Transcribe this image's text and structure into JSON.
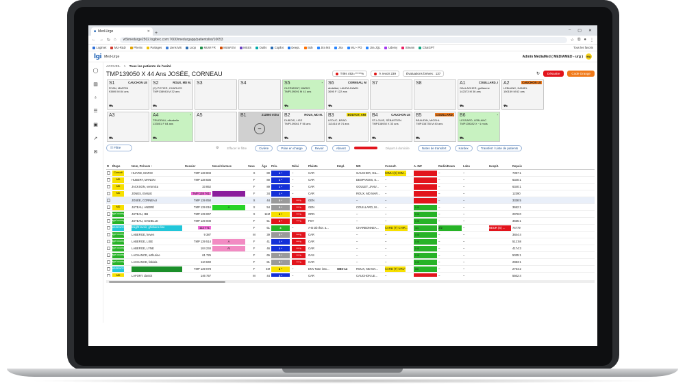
{
  "browser": {
    "tab_title": "Med-Urge",
    "url": "w5imedurge2502.logibec.com:7600/medurgapp/patientslist/10053",
    "bookmarks": [
      "Logimet",
      "MU-R&D",
      "Phenix",
      "Partages",
      "Liens MS",
      "Loop",
      "MUW FR",
      "MUW EN",
      "MSSS",
      "Outils",
      "Copilot",
      "DeepL",
      "Bob",
      "Jira MS",
      "Jira",
      "MU - PO",
      "Jira JQL",
      "Udemy",
      "Stream",
      "ChatGPT"
    ],
    "bookmarks_right": "Tous les favoris"
  },
  "app": {
    "logo": "lgi",
    "name": "Med-Urge",
    "admin": "Admin MédiaMed ( MEDIAMED - urg )",
    "avatar": "MA"
  },
  "breadcrumb": {
    "home": "ACCUEIL",
    "sep": ">",
    "current": "Tous les patients de l'unité"
  },
  "patient_title": "TMP139050 X 44 Ans JOSÉE, CORNEAU",
  "summary": {
    "tries": "Triés 492=*****%",
    "revoir": "À revoir 239",
    "evaluations": "Évaluations brèves : 137"
  },
  "buttons": {
    "desastre": "Désastre",
    "code_orange": "Code Orange",
    "refresh": "↻"
  },
  "beds": [
    {
      "id": "S1",
      "head": "CAUCHON LE",
      "l1": "RYAN, MARTIN",
      "l2": "93890    M  84 ans",
      "bg": "#f4f4f4"
    },
    {
      "id": "S2",
      "head": "ROUX, MD M.",
      "l1": "(C) POTIER, CHARLES",
      "l2": "TMP138943   M  32 ans",
      "bg": "#f4f4f4"
    },
    {
      "id": "S3",
      "head": "",
      "l1": "",
      "l2": "",
      "bg": "#f4f4f4"
    },
    {
      "id": "S4",
      "head": "",
      "l1": "",
      "l2": "",
      "bg": "#f4f4f4"
    },
    {
      "id": "S5",
      "head": "-",
      "l1": "CLERMONT, MARIO",
      "l2": "TMP139091   M  41 ans",
      "bg": "#c8f2c1"
    },
    {
      "id": "S6",
      "head": "CORNEAU, M",
      "l1": "abdallad, LAURA-DAWN",
      "l2": "3695    F  122 ans",
      "bg": "#f4f4f4"
    },
    {
      "id": "S7",
      "head": "",
      "l1": "",
      "l2": "",
      "bg": "#f4f4f4"
    },
    {
      "id": "S8",
      "head": "",
      "l1": "",
      "l2": "",
      "bg": "#f4f4f4"
    },
    {
      "id": "A1",
      "head": "COUILLARD, I",
      "l1": "GALLAGHER, guillaume",
      "l2": "142373   M  36 ans",
      "bg": "#f4f4f4"
    },
    {
      "id": "A2",
      "head": "CAUCHON LE",
      "l1": "LEBLANC, DANIEL",
      "l2": "150159   M  62 ans",
      "bg": "#f4f4f4"
    },
    {
      "id": "A3",
      "head": "",
      "l1": "",
      "l2": "",
      "bg": "#f4f4f4"
    },
    {
      "id": "A4",
      "head": "-",
      "l1": "TRUDEAU, elisabelle",
      "l2": "133051   F  64 ans",
      "bg": "#c8f2c1"
    },
    {
      "id": "A5",
      "head": "",
      "l1": "",
      "l2": "",
      "bg": "#f4f4f4"
    },
    {
      "id": "B1",
      "head": "212060 minu",
      "l1": "",
      "l2": "",
      "bg": "#d0d0d0"
    },
    {
      "id": "B2",
      "head": "ROUX, MD M.",
      "l1": "DUBOIS, LISE",
      "l2": "TMP139061   F  56 ans",
      "bg": "#f4f4f4"
    },
    {
      "id": "B3",
      "head": "BOUTOT, ANI",
      "l1": "LEDUC, BRAD",
      "l2": "113416   M  74 ans",
      "bg": "#f4f4f4"
    },
    {
      "id": "B4",
      "head": "CAUCHON LE",
      "l1": "ST-LOUIS, SÉBASTIEN",
      "l2": "TMP138930   X  33 ans",
      "bg": "#f4f4f4"
    },
    {
      "id": "B5",
      "head": "COUILLARD,",
      "l1": "BEAUDIN, MICEHL",
      "l2": "TMP138735   M  40 ans",
      "bg": "#f4f4f4"
    },
    {
      "id": "B6",
      "head": "-",
      "l1": "LESSARD, LEBLANC",
      "l2": "TMP139282   X  ~1 mois",
      "bg": "#c8f2c1"
    }
  ],
  "filters": {
    "filtre": "Filtre",
    "effacer": "Effacer le filtre",
    "civiere": "Civière",
    "prise": "Prise en charge",
    "revoir": "Revoir",
    "absent": "Absent",
    "red": "",
    "depart": "Départ à domicile",
    "notes": "Notes de transfert",
    "kardex": "Kardex",
    "transfert": "Transfert / Liste de patients"
  },
  "columns": [
    "R",
    "Étape",
    "Nom, Prénom ↑",
    "Dossier",
    "Nsso/Alarmes",
    "Sexe",
    "Âge",
    "Prio.",
    "Délai",
    "Plainte",
    "Empl.",
    "MD",
    "Consult.",
    "A. INF",
    "Radio/Exam",
    "Labo",
    "Hospit.",
    "Depuis"
  ],
  "rows": [
    {
      "stage": "Consult",
      "sc": "#f7e000",
      "name": "HUARD, MARIO",
      "dossier": "TMP 138 803",
      "alarm": "",
      "ac": "",
      "sex": "X",
      "age": "80",
      "prio": "1 *",
      "pc": "#1430d8",
      "delay": "–",
      "dc": "",
      "plainte": "CAR",
      "empl": "",
      "md": "GAUCHER, GIL...",
      "consult": "IMMU (S) IMM...",
      "cc": "#f7e000",
      "ainf": "",
      "ic": "#e2141c",
      "radio": "–",
      "labo": "–",
      "hosp": "",
      "hc": "",
      "since": "7397:1"
    },
    {
      "stage": "MD",
      "sc": "#f7e000",
      "name": "HUBERT, MANON",
      "dossier": "TMP 138 836",
      "alarm": "",
      "ac": "",
      "sex": "F",
      "age": "80",
      "prio": "1 *",
      "pc": "#1430d8",
      "delay": "–",
      "dc": "",
      "plainte": "CAR",
      "empl": "",
      "md": "DESPAROIS, E...",
      "consult": "–",
      "cc": "",
      "ainf": "",
      "ic": "#e2141c",
      "radio": "–",
      "labo": "–",
      "hosp": "",
      "hc": "",
      "since": "6340:1"
    },
    {
      "stage": "MD",
      "sc": "#f7e000",
      "name": "JACKSON, veromica",
      "dossier": "33 852",
      "alarm": "",
      "ac": "",
      "sex": "F",
      "age": "89",
      "prio": "1 *",
      "pc": "#1430d8",
      "delay": "–",
      "dc": "",
      "plainte": "CAR",
      "empl": "",
      "md": "GOULET, JANV...",
      "consult": "–",
      "cc": "",
      "ainf": "",
      "ic": "#e2141c",
      "radio": "–",
      "labo": "–",
      "hosp": "",
      "hc": "",
      "since": "6340:1"
    },
    {
      "stage": "MD",
      "sc": "#f7e000",
      "name": "JONES, EMILIE",
      "dossier": "TMP 138 761",
      "alarm": "",
      "ac": "#8a1d9c",
      "sex": "F",
      "age": "34",
      "prio": "1 *",
      "pc": "#1430d8",
      "delay": "–",
      "dc": "",
      "plainte": "CAR",
      "empl": "",
      "md": "ROUX, MD MAR...",
      "consult": "–",
      "cc": "",
      "ainf": "",
      "ic": "#e2141c",
      "radio": "–",
      "labo": "–",
      "hosp": "",
      "hc": "",
      "since": "12390"
    },
    {
      "stage": "",
      "sc": "",
      "name": "JOSÉE, CORNEAU",
      "dossier": "TMP 139 050",
      "alarm": "",
      "ac": "",
      "sex": "X",
      "age": "44",
      "prio": "5 *",
      "pc": "#9a9a9a",
      "delay": "****h",
      "dc": "#e2141c",
      "plainte": "GEN",
      "empl": "",
      "md": "–",
      "consult": "–",
      "cc": "",
      "ainf": "",
      "ic": "#e2141c",
      "radio": "–",
      "labo": "–",
      "hosp": "",
      "hc": "",
      "since": "3338:5"
    },
    {
      "stage": "MD",
      "sc": "#f7e000",
      "name": "JUTEAU, ANDRÉ",
      "dossier": "TMP 139 016",
      "alarm": "A",
      "ac": "#27d327",
      "sex": "X",
      "age": "54",
      "prio": "5 *",
      "pc": "#9a9a9a",
      "delay": "****h",
      "dc": "#e2141c",
      "plainte": "GEN",
      "empl": "",
      "md": "COUILLARD, M...",
      "consult": "–",
      "cc": "",
      "ainf": "0 /0",
      "ic": "#27b327",
      "radio": "–",
      "labo": "–",
      "hosp": "",
      "hc": "",
      "since": "3652:1"
    },
    {
      "stage": "Triage Incomplet",
      "sc": "#27b327",
      "name": "JUTEAU, BB",
      "dossier": "TMP 139 067",
      "alarm": "",
      "ac": "",
      "sex": "X",
      "age": "11M",
      "prio": "3 *",
      "pc": "#f7e000",
      "delay": "****h",
      "dc": "#e2141c",
      "plainte": "ORN",
      "empl": "",
      "md": "–",
      "consult": "–",
      "cc": "",
      "ainf": "0 /0",
      "ic": "#27b327",
      "radio": "–",
      "labo": "–",
      "hosp": "",
      "hc": "",
      "since": "2976:0"
    },
    {
      "stage": "Triage Incomplet",
      "sc": "#27b327",
      "name": "JUTEAU, DANIELLE",
      "dossier": "TMP 139 008",
      "alarm": "",
      "ac": "",
      "sex": "F",
      "age": "51",
      "prio": "2 *",
      "pc": "#e2141c",
      "delay": "****h",
      "dc": "#e2141c",
      "plainte": "PSY",
      "empl": "",
      "md": "–",
      "consult": "–",
      "cc": "",
      "ainf": "0 /0",
      "ic": "#27b327",
      "radio": "–",
      "labo": "–",
      "hosp": "",
      "hc": "",
      "since": "3655:1"
    },
    {
      "stage": "ABSENCE",
      "sc": "#22c6d9",
      "name": "knight lavoir, ghislaine lise",
      "dossier": "112 771",
      "alarm": "",
      "ac": "",
      "sex": "F",
      "age": "61",
      "prio": "4",
      "pc": "#27b327",
      "delay": "–",
      "dc": "",
      "plainte": "A-B Db thor. a...",
      "empl": "",
      "md": "CHARBONNEA...",
      "consult": "CARD (T) CHIR...",
      "cc": "#f7e000",
      "ainf": "1/1",
      "ic": "#27b327",
      "radio": "2/2",
      "labo": "–",
      "hosp": "NEUR (S) ...",
      "hc": "#e2141c",
      "since": "74779"
    },
    {
      "stage": "Triage Incomplet",
      "sc": "#27b327",
      "name": "LABERGE, keven",
      "dossier": "9 387",
      "alarm": "",
      "ac": "",
      "sex": "M",
      "age": "39",
      "prio": "5 *",
      "pc": "#9a9a9a",
      "delay": "****h",
      "dc": "#e2141c",
      "plainte": "CAR",
      "empl": "",
      "md": "–",
      "consult": "–",
      "cc": "",
      "ainf": "0 /0",
      "ic": "#27b327",
      "radio": "–",
      "labo": "–",
      "hosp": "",
      "hc": "",
      "since": "3844:4"
    },
    {
      "stage": "Triage Incomplet",
      "sc": "#27b327",
      "name": "LABERGE, LISE",
      "dossier": "TMP 139 514",
      "alarm": "A",
      "ac": "#f28bc3",
      "sex": "F",
      "age": "41",
      "prio": "1 *",
      "pc": "#1430d8",
      "delay": "****h",
      "dc": "#e2141c",
      "plainte": "CAR",
      "empl": "",
      "md": "–",
      "consult": "–",
      "cc": "",
      "ainf": "0 /0",
      "ic": "#27b327",
      "radio": "–",
      "labo": "–",
      "hosp": "",
      "hc": "",
      "since": "512:58"
    },
    {
      "stage": "Triage Incomplet",
      "sc": "#27b327",
      "name": "LABERGE, LYNE",
      "dossier": "104 234",
      "alarm": "AI",
      "ac": "#f28bc3",
      "sex": "F",
      "age": "46",
      "prio": "1 *",
      "pc": "#1430d8",
      "delay": "****h",
      "dc": "#e2141c",
      "plainte": "CAR",
      "empl": "",
      "md": "–",
      "consult": "–",
      "cc": "",
      "ainf": "0 /0",
      "ic": "#27b327",
      "radio": "–",
      "labo": "–",
      "hosp": "",
      "hc": "",
      "since": "4174:3"
    },
    {
      "stage": "Triage Incomplet",
      "sc": "#27b327",
      "name": "LACHANCE, arthurine",
      "dossier": "61 725",
      "alarm": "",
      "ac": "",
      "sex": "F",
      "age": "65",
      "prio": "5 *",
      "pc": "#9a9a9a",
      "delay": "****h",
      "dc": "#e2141c",
      "plainte": "GAS",
      "empl": "",
      "md": "–",
      "consult": "–",
      "cc": "",
      "ainf": "0 /0",
      "ic": "#27b327",
      "radio": "–",
      "labo": "–",
      "hosp": "",
      "hc": "",
      "since": "5035:1"
    },
    {
      "stage": "Triage Incomplet",
      "sc": "#27b327",
      "name": "LACHANCE, fabiola",
      "dossier": "110 840",
      "alarm": "",
      "ac": "",
      "sex": "F",
      "age": "81",
      "prio": "5 *",
      "pc": "#9a9a9a",
      "delay": "****h",
      "dc": "#e2141c",
      "plainte": "CAR",
      "empl": "",
      "md": "–",
      "consult": "–",
      "cc": "",
      "ainf": "0 /0",
      "ic": "#27b327",
      "radio": "–",
      "labo": "–",
      "hosp": "",
      "hc": "",
      "since": "2983:1"
    },
    {
      "stage": "ABSENCE",
      "sc": "#22c6d9",
      "name": "",
      "dossier": "TMP 139 078",
      "alarm": "",
      "ac": "",
      "sex": "F",
      "age": "4M",
      "prio": "3 *",
      "pc": "#f7e000",
      "delay": "–",
      "dc": "",
      "plainte": "ENV Note insc...",
      "empl": "OBS-14",
      "md": "ROUX, MD MA...",
      "consult": "CARD (T) ORL*",
      "cc": "#f7e000",
      "ainf": "0/0",
      "ic": "#27b327",
      "radio": "–",
      "labo": "–",
      "hosp": "",
      "hc": "",
      "since": "2764:2"
    },
    {
      "stage": "MD",
      "sc": "#f7e000",
      "name": "LAFORT, davick",
      "dossier": "146 757",
      "alarm": "",
      "ac": "",
      "sex": "M",
      "age": "44",
      "prio": "5 *",
      "pc": "#1430d8",
      "delay": "–",
      "dc": "",
      "plainte": "CAR",
      "empl": "",
      "md": "CAUCHON LE...",
      "consult": "–",
      "cc": "",
      "ainf": "",
      "ic": "#e2141c",
      "radio": "–",
      "labo": "–",
      "hosp": "",
      "hc": "",
      "since": "5502:4"
    }
  ]
}
